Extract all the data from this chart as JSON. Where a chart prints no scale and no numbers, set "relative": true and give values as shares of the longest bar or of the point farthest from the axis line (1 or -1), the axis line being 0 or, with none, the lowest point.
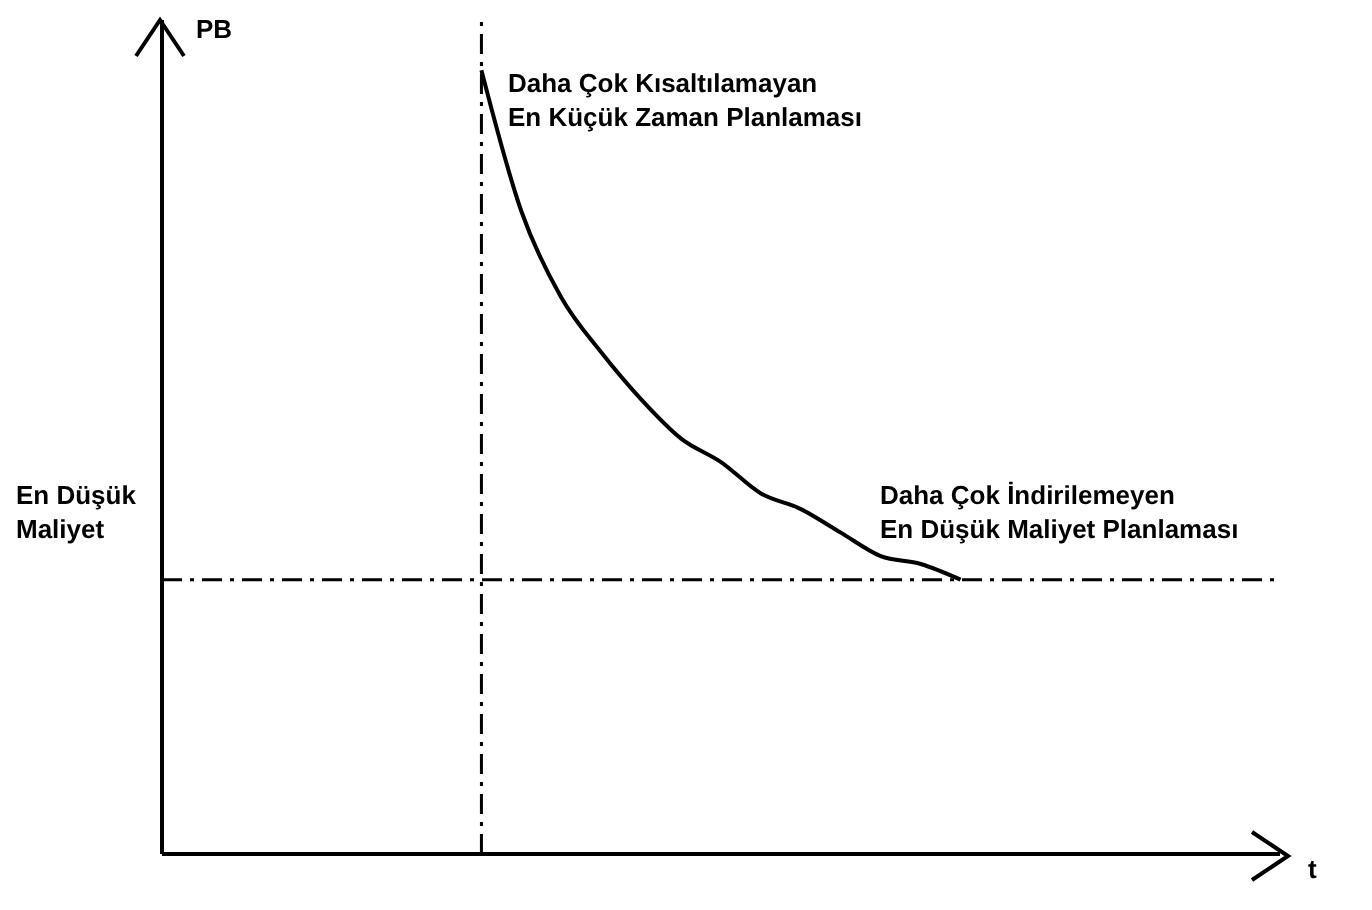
{
  "chart_data": {
    "type": "line",
    "relative": true,
    "xlabel": "t",
    "ylabel": "PB",
    "categories": [
      null,
      null,
      null,
      null,
      null,
      null,
      null,
      null,
      null,
      null,
      null,
      null,
      null,
      null,
      null,
      null,
      null,
      null,
      null,
      null,
      null,
      null,
      null,
      null,
      null,
      null,
      null,
      null,
      null
    ],
    "series": [
      {
        "color": "#000000",
        "values": [
          null,
          null,
          null,
          null,
          null,
          null,
          null,
          null,
          1,
          0.82,
          0.71,
          0.64,
          0.58,
          0.53,
          0.5,
          0.46,
          0.44,
          0.41,
          0.38,
          0.37,
          0.35,
          null,
          null,
          null,
          null,
          null,
          null,
          null,
          null
        ]
      }
    ],
    "ref_lines": [
      {
        "axis": "y",
        "value": 0.35,
        "label": "En Düşük Maliyet",
        "line_style": "dashed",
        "color": "#000000"
      }
    ],
    "annotations": [
      "Daha Çok Kısaltılamayan\nEn Küçük Zaman Planlaması",
      "Daha Çok İndirilemeyen\nEn Düşük Maliyet Planlaması"
    ]
  }
}
